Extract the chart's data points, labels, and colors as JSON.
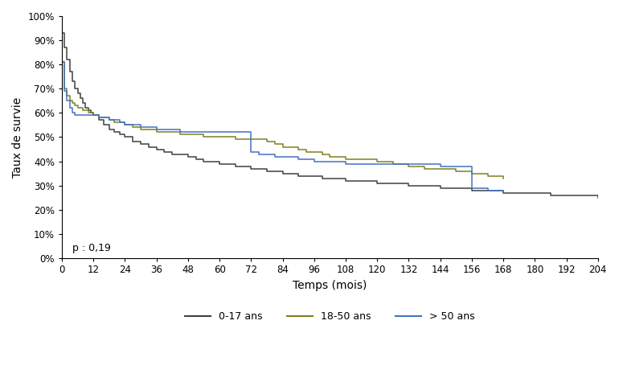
{
  "title": "",
  "xlabel": "Temps (mois)",
  "ylabel": "Taux de survie",
  "pvalue": "p : 0,19",
  "xlim": [
    0,
    204
  ],
  "ylim": [
    0,
    1.0
  ],
  "xticks": [
    0,
    12,
    24,
    36,
    48,
    60,
    72,
    84,
    96,
    108,
    120,
    132,
    144,
    156,
    168,
    180,
    192,
    204
  ],
  "yticks": [
    0.0,
    0.1,
    0.2,
    0.3,
    0.4,
    0.5,
    0.6,
    0.7,
    0.8,
    0.9,
    1.0
  ],
  "legend_labels": [
    "0-17 ans",
    "18-50 ans",
    "> 50 ans"
  ],
  "line_colors": [
    "#404040",
    "#808020",
    "#4472c4"
  ],
  "background_color": "#ffffff",
  "curve_0_17": {
    "x": [
      0,
      1,
      2,
      3,
      4,
      5,
      6,
      7,
      8,
      9,
      10,
      11,
      12,
      14,
      16,
      18,
      20,
      22,
      24,
      27,
      30,
      33,
      36,
      39,
      42,
      45,
      48,
      51,
      54,
      57,
      60,
      63,
      66,
      69,
      72,
      75,
      78,
      81,
      84,
      87,
      90,
      93,
      96,
      99,
      102,
      108,
      114,
      120,
      126,
      132,
      138,
      144,
      150,
      156,
      162,
      168,
      174,
      180,
      186,
      192,
      198,
      204
    ],
    "y": [
      0.93,
      0.87,
      0.82,
      0.77,
      0.73,
      0.7,
      0.68,
      0.66,
      0.64,
      0.62,
      0.61,
      0.6,
      0.59,
      0.57,
      0.55,
      0.53,
      0.52,
      0.51,
      0.5,
      0.48,
      0.47,
      0.46,
      0.45,
      0.44,
      0.43,
      0.43,
      0.42,
      0.41,
      0.4,
      0.4,
      0.39,
      0.39,
      0.38,
      0.38,
      0.37,
      0.37,
      0.36,
      0.36,
      0.35,
      0.35,
      0.34,
      0.34,
      0.34,
      0.33,
      0.33,
      0.32,
      0.32,
      0.31,
      0.31,
      0.3,
      0.3,
      0.29,
      0.29,
      0.28,
      0.28,
      0.27,
      0.27,
      0.27,
      0.26,
      0.26,
      0.26,
      0.25
    ]
  },
  "curve_18_50": {
    "x": [
      0,
      1,
      2,
      3,
      4,
      5,
      6,
      7,
      8,
      9,
      10,
      11,
      12,
      14,
      16,
      18,
      20,
      22,
      24,
      27,
      30,
      33,
      36,
      39,
      42,
      45,
      48,
      51,
      54,
      57,
      60,
      63,
      66,
      69,
      72,
      75,
      78,
      81,
      84,
      87,
      90,
      93,
      96,
      99,
      102,
      108,
      114,
      120,
      126,
      132,
      138,
      144,
      150,
      156,
      162,
      168
    ],
    "y": [
      0.81,
      0.7,
      0.67,
      0.65,
      0.64,
      0.63,
      0.62,
      0.62,
      0.61,
      0.61,
      0.6,
      0.6,
      0.59,
      0.58,
      0.58,
      0.57,
      0.56,
      0.56,
      0.55,
      0.54,
      0.53,
      0.53,
      0.52,
      0.52,
      0.52,
      0.51,
      0.51,
      0.51,
      0.5,
      0.5,
      0.5,
      0.5,
      0.49,
      0.49,
      0.49,
      0.49,
      0.48,
      0.47,
      0.46,
      0.46,
      0.45,
      0.44,
      0.44,
      0.43,
      0.42,
      0.41,
      0.41,
      0.4,
      0.39,
      0.38,
      0.37,
      0.37,
      0.36,
      0.35,
      0.34,
      0.33
    ]
  },
  "curve_50plus": {
    "x": [
      0,
      1,
      2,
      3,
      4,
      5,
      6,
      7,
      8,
      9,
      10,
      11,
      12,
      14,
      16,
      18,
      20,
      22,
      24,
      27,
      30,
      33,
      36,
      39,
      42,
      45,
      48,
      51,
      54,
      57,
      60,
      63,
      66,
      69,
      72,
      75,
      78,
      81,
      84,
      87,
      90,
      93,
      96,
      99,
      102,
      108,
      114,
      120,
      126,
      132,
      138,
      144,
      150,
      156,
      162,
      168
    ],
    "y": [
      0.81,
      0.69,
      0.65,
      0.62,
      0.6,
      0.59,
      0.59,
      0.59,
      0.59,
      0.59,
      0.59,
      0.59,
      0.59,
      0.58,
      0.58,
      0.57,
      0.57,
      0.56,
      0.55,
      0.55,
      0.54,
      0.54,
      0.53,
      0.53,
      0.53,
      0.52,
      0.52,
      0.52,
      0.52,
      0.52,
      0.52,
      0.52,
      0.52,
      0.52,
      0.44,
      0.43,
      0.43,
      0.42,
      0.42,
      0.42,
      0.41,
      0.41,
      0.4,
      0.4,
      0.4,
      0.39,
      0.39,
      0.39,
      0.39,
      0.39,
      0.39,
      0.38,
      0.38,
      0.29,
      0.28,
      0.27
    ]
  }
}
